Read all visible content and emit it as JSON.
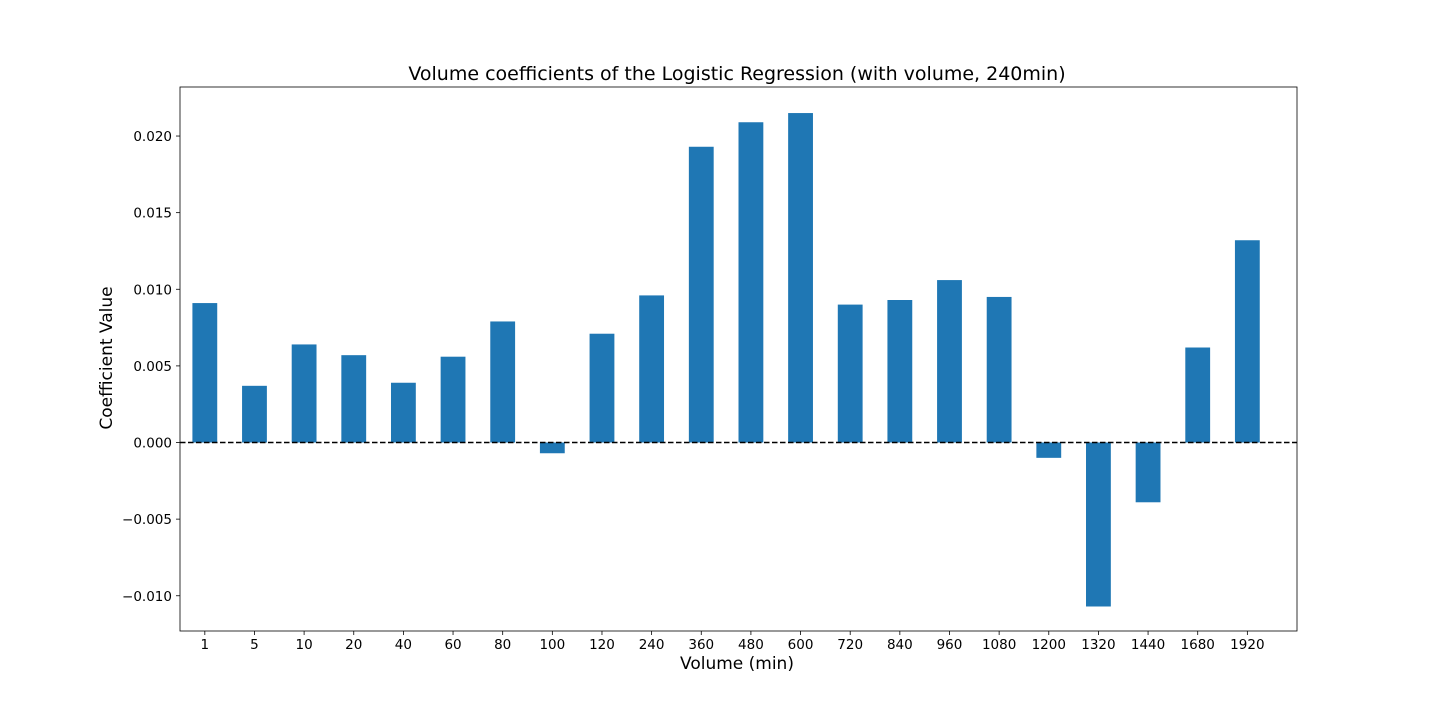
{
  "chart_data": {
    "type": "bar",
    "title": "Volume coefficients of the Logistic Regression (with volume, 240min)",
    "xlabel": "Volume (min)",
    "ylabel": "Coefficient Value",
    "categories": [
      "1",
      "5",
      "10",
      "20",
      "40",
      "60",
      "80",
      "100",
      "120",
      "240",
      "360",
      "480",
      "600",
      "720",
      "840",
      "960",
      "1080",
      "1200",
      "1320",
      "1440",
      "1680",
      "1920"
    ],
    "values": [
      0.0091,
      0.0037,
      0.0064,
      0.0057,
      0.0039,
      0.0056,
      0.0079,
      -0.0007,
      0.0071,
      0.0096,
      0.0193,
      0.0209,
      0.0215,
      0.009,
      0.0093,
      0.0106,
      0.0095,
      -0.001,
      -0.0107,
      -0.0039,
      0.0062,
      0.0132
    ],
    "yticks": [
      "−0.010",
      "−0.005",
      "0.000",
      "0.005",
      "0.010",
      "0.015",
      "0.020"
    ],
    "ytick_values": [
      -0.01,
      -0.005,
      0.0,
      0.005,
      0.01,
      0.015,
      0.02
    ],
    "ylim": [
      -0.0123,
      0.0232
    ],
    "bar_color": "#1f77b4",
    "reference_line": {
      "y": 0,
      "style": "dashed",
      "color": "#000000"
    },
    "grid": false,
    "legend": "none"
  }
}
